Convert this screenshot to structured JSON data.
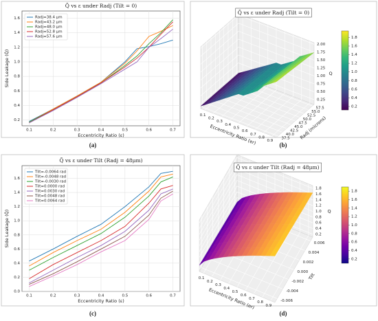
{
  "chart_data": [
    {
      "type": "line",
      "label": "(a)",
      "title": "Q̃ vs ε under Radj (Tilt = 0)",
      "x_label": "Eccentricity Ratio (ε)",
      "y_label": "Side Leakage (Q̃)",
      "x": [
        0.1,
        0.2,
        0.3,
        0.4,
        0.5,
        0.55,
        0.6,
        0.65,
        0.7
      ],
      "xlim": [
        0.07,
        0.73
      ],
      "xticks": [
        0.1,
        0.2,
        0.3,
        0.4,
        0.5,
        0.6,
        0.7
      ],
      "ylim": [
        0.12,
        1.7
      ],
      "yticks": [
        0.2,
        0.4,
        0.6,
        0.8,
        {
          "value": 1,
          "label": "1.0"
        },
        1.2,
        1.4,
        1.6
      ],
      "grid": true,
      "legend": "upper-left",
      "series": [
        {
          "name": "Radj=38.4 μm",
          "color": "#1f77b4",
          "values": [
            0.18,
            0.35,
            0.53,
            0.72,
            1.0,
            1.18,
            1.21,
            1.25,
            1.3
          ]
        },
        {
          "name": "Radj=43.2 μm",
          "color": "#ff7f0e",
          "values": [
            0.17,
            0.35,
            0.53,
            0.72,
            0.98,
            1.15,
            1.35,
            1.42,
            1.5
          ]
        },
        {
          "name": "Radj=48.0 μm",
          "color": "#2ca02c",
          "values": [
            0.17,
            0.34,
            0.52,
            0.71,
            0.95,
            1.08,
            1.25,
            1.4,
            1.58
          ]
        },
        {
          "name": "Radj=52.8 μm",
          "color": "#d62728",
          "values": [
            0.16,
            0.34,
            0.52,
            0.71,
            0.93,
            1.05,
            1.2,
            1.38,
            1.55
          ]
        },
        {
          "name": "Radj=57.6 μm",
          "color": "#9467bd",
          "values": [
            0.16,
            0.33,
            0.51,
            0.7,
            0.9,
            1.0,
            1.2,
            1.32,
            1.45
          ]
        }
      ]
    },
    {
      "type": "surface3d",
      "label": "(b)",
      "title": "Q̃ vs ε under Radj (Tilt = 0)",
      "x_label": "Eccentricity Ratio (er)",
      "y_label": "Radj (microns)",
      "z_label": "Q",
      "colormap": "viridis",
      "xlim": [
        0.05,
        0.95
      ],
      "xticks": [
        0.1,
        0.2,
        0.3,
        0.4,
        0.5,
        0.6,
        0.7,
        0.8,
        0.9
      ],
      "ylim": [
        36.5,
        58.5
      ],
      "yticks": [
        37.5,
        {
          "value": 40,
          "label": "40.0"
        },
        42.5,
        {
          "value": 45,
          "label": "45.0"
        },
        47.5,
        {
          "value": 50,
          "label": "50.0"
        },
        52.5,
        {
          "value": 55,
          "label": "55.0"
        },
        57.5
      ],
      "zlim": [
        0.1,
        2.05
      ],
      "zticks": [
        0.25,
        {
          "value": 0.5,
          "label": "0.50"
        },
        0.75,
        {
          "value": 1,
          "label": "1.00"
        },
        1.25,
        {
          "value": 1.5,
          "label": "1.50"
        },
        1.75,
        {
          "value": 2,
          "label": "2.00"
        }
      ],
      "clim": [
        0.12,
        1.95
      ],
      "cticks": [
        0.2,
        0.4,
        0.6,
        0.8,
        {
          "value": 1,
          "label": "1.0"
        },
        1.2,
        1.4,
        1.6,
        1.8
      ]
    },
    {
      "type": "line",
      "label": "(c)",
      "title": "Q̃ vs ε under Tilt (Radj = 48μm)",
      "x_label": "Eccentricity Ratio (ε)",
      "y_label": "Side Leakage (Q̃)",
      "x": [
        0.1,
        0.2,
        0.3,
        0.4,
        0.5,
        0.6,
        0.65,
        0.7
      ],
      "xlim": [
        0.07,
        0.73
      ],
      "xticks": [
        0.1,
        0.2,
        0.3,
        0.4,
        0.5,
        0.6,
        0.7
      ],
      "ylim": [
        0,
        1.78
      ],
      "yticks": [
        {
          "value": 0,
          "label": "0.0"
        },
        0.2,
        0.4,
        0.6,
        0.8,
        {
          "value": 1,
          "label": "1.0"
        },
        1.2,
        1.4,
        1.6
      ],
      "grid": true,
      "legend": "upper-left",
      "series": [
        {
          "name": "Tilt=-0.0064 rad",
          "color": "#1f77b4",
          "values": [
            0.43,
            0.6,
            0.78,
            0.95,
            1.2,
            1.48,
            1.67,
            1.7
          ]
        },
        {
          "name": "Tilt=-0.0048 rad",
          "color": "#ff7f0e",
          "values": [
            0.36,
            0.55,
            0.72,
            0.88,
            1.12,
            1.42,
            1.62,
            1.66
          ]
        },
        {
          "name": "Tilt=-0.0030 rad",
          "color": "#2ca02c",
          "values": [
            0.3,
            0.48,
            0.65,
            0.82,
            1.05,
            1.35,
            1.55,
            1.62
          ]
        },
        {
          "name": "Tilt=0.0000 rad",
          "color": "#d62728",
          "values": [
            0.18,
            0.38,
            0.55,
            0.72,
            0.92,
            1.25,
            1.45,
            1.5
          ]
        },
        {
          "name": "Tilt=0.0030 rad",
          "color": "#9467bd",
          "values": [
            0.12,
            0.3,
            0.48,
            0.65,
            0.85,
            1.15,
            1.38,
            1.45
          ]
        },
        {
          "name": "Tilt=0.0048 rad",
          "color": "#8c564b",
          "values": [
            0.1,
            0.25,
            0.42,
            0.6,
            0.78,
            1.08,
            1.32,
            1.42
          ]
        },
        {
          "name": "Tilt=0.0064 rad",
          "color": "#e377c2",
          "values": [
            0.07,
            0.22,
            0.38,
            0.56,
            0.72,
            1.02,
            1.28,
            1.38
          ]
        }
      ]
    },
    {
      "type": "surface3d",
      "label": "(d)",
      "title": "Q̃ vs ε under Tilt (Radj = 48μm)",
      "x_label": "Eccentricity Ratio (er)",
      "y_label": "Tilt",
      "z_label": "Q",
      "colormap": "plasma",
      "xlim": [
        0.05,
        0.95
      ],
      "xticks": [
        0.1,
        0.2,
        0.3,
        0.4,
        0.5,
        0.6,
        0.7,
        0.8,
        0.9
      ],
      "ylim": [
        -0.0068,
        0.0068
      ],
      "yticks": [
        -0.006,
        -0.004,
        -0.002,
        {
          "value": 0,
          "label": "0.000"
        },
        0.002,
        0.004,
        0.006
      ],
      "zlim": [
        0.1,
        1.9
      ],
      "zticks": [
        0.2,
        0.4,
        0.6,
        0.8,
        {
          "value": 1,
          "label": "1.0"
        },
        1.2,
        1.4,
        1.6,
        1.8
      ],
      "clim": [
        0.1,
        1.9
      ],
      "cticks": [
        0.2,
        0.4,
        0.6,
        0.8,
        {
          "value": 1,
          "label": "1.0"
        },
        1.2,
        1.4,
        1.6,
        1.8
      ]
    }
  ]
}
